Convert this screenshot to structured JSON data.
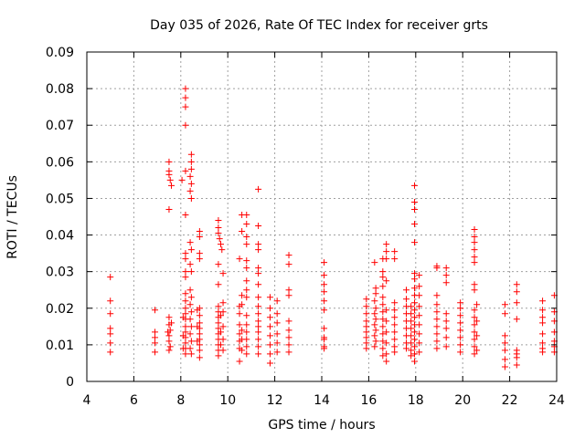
{
  "chart_data": {
    "type": "scatter",
    "title": "Day 035 of 2026, Rate Of TEC Index for receiver grts",
    "xlabel": "GPS time / hours",
    "ylabel": "ROTI / TECUs",
    "xlim": [
      4,
      24
    ],
    "ylim": [
      0,
      0.09
    ],
    "x_ticks": [
      4,
      6,
      8,
      10,
      12,
      14,
      16,
      18,
      20,
      22,
      24
    ],
    "x_tick_labels": [
      "4",
      "6",
      "8",
      "10",
      "12",
      "14",
      "16",
      "18",
      "20",
      "22",
      "24"
    ],
    "y_ticks": [
      0,
      0.01,
      0.02,
      0.03,
      0.04,
      0.05,
      0.06,
      0.07,
      0.08,
      0.09
    ],
    "y_tick_labels": [
      "0",
      "0.01",
      "0.02",
      "0.03",
      "0.04",
      "0.05",
      "0.06",
      "0.07",
      "0.08",
      "0.09"
    ],
    "grid": true,
    "marker": "plus",
    "color": "#ff0000",
    "points": [
      [
        5.0,
        0.0285
      ],
      [
        5.0,
        0.022
      ],
      [
        5.0,
        0.0185
      ],
      [
        5.0,
        0.0145
      ],
      [
        5.0,
        0.013
      ],
      [
        5.0,
        0.0105
      ],
      [
        5.0,
        0.008
      ],
      [
        6.9,
        0.0195
      ],
      [
        6.9,
        0.0135
      ],
      [
        6.9,
        0.012
      ],
      [
        6.9,
        0.0105
      ],
      [
        6.9,
        0.008
      ],
      [
        7.5,
        0.06
      ],
      [
        7.5,
        0.0575
      ],
      [
        7.5,
        0.0565
      ],
      [
        7.55,
        0.055
      ],
      [
        7.6,
        0.0535
      ],
      [
        7.5,
        0.047
      ],
      [
        7.5,
        0.0175
      ],
      [
        7.5,
        0.0155
      ],
      [
        7.55,
        0.014
      ],
      [
        7.5,
        0.0125
      ],
      [
        7.5,
        0.011
      ],
      [
        7.55,
        0.0095
      ],
      [
        7.5,
        0.0085
      ],
      [
        7.6,
        0.016
      ],
      [
        7.45,
        0.0135
      ],
      [
        8.2,
        0.08
      ],
      [
        8.2,
        0.0775
      ],
      [
        8.2,
        0.075
      ],
      [
        8.2,
        0.07
      ],
      [
        8.2,
        0.0575
      ],
      [
        8.2,
        0.0455
      ],
      [
        8.2,
        0.035
      ],
      [
        8.2,
        0.0335
      ],
      [
        8.2,
        0.03
      ],
      [
        8.2,
        0.0285
      ],
      [
        8.2,
        0.024
      ],
      [
        8.2,
        0.022
      ],
      [
        8.2,
        0.02
      ],
      [
        8.2,
        0.0185
      ],
      [
        8.2,
        0.017
      ],
      [
        8.2,
        0.015
      ],
      [
        8.2,
        0.0135
      ],
      [
        8.2,
        0.012
      ],
      [
        8.2,
        0.0105
      ],
      [
        8.2,
        0.009
      ],
      [
        8.2,
        0.0075
      ],
      [
        8.05,
        0.055
      ],
      [
        8.1,
        0.0175
      ],
      [
        8.1,
        0.0125
      ],
      [
        8.1,
        0.009
      ],
      [
        8.45,
        0.062
      ],
      [
        8.45,
        0.06
      ],
      [
        8.45,
        0.058
      ],
      [
        8.4,
        0.056
      ],
      [
        8.45,
        0.054
      ],
      [
        8.4,
        0.052
      ],
      [
        8.45,
        0.05
      ],
      [
        8.4,
        0.038
      ],
      [
        8.45,
        0.036
      ],
      [
        8.4,
        0.032
      ],
      [
        8.45,
        0.03
      ],
      [
        8.4,
        0.025
      ],
      [
        8.45,
        0.023
      ],
      [
        8.4,
        0.021
      ],
      [
        8.45,
        0.019
      ],
      [
        8.4,
        0.017
      ],
      [
        8.45,
        0.015
      ],
      [
        8.4,
        0.013
      ],
      [
        8.45,
        0.011
      ],
      [
        8.4,
        0.009
      ],
      [
        8.45,
        0.0075
      ],
      [
        8.8,
        0.041
      ],
      [
        8.8,
        0.0395
      ],
      [
        8.8,
        0.035
      ],
      [
        8.8,
        0.0335
      ],
      [
        8.8,
        0.02
      ],
      [
        8.8,
        0.018
      ],
      [
        8.8,
        0.016
      ],
      [
        8.8,
        0.0145
      ],
      [
        8.8,
        0.013
      ],
      [
        8.8,
        0.0115
      ],
      [
        8.8,
        0.01
      ],
      [
        8.8,
        0.0085
      ],
      [
        8.8,
        0.0065
      ],
      [
        8.7,
        0.0195
      ],
      [
        8.7,
        0.015
      ],
      [
        8.7,
        0.011
      ],
      [
        9.6,
        0.044
      ],
      [
        9.6,
        0.042
      ],
      [
        9.6,
        0.0405
      ],
      [
        9.65,
        0.039
      ],
      [
        9.7,
        0.0375
      ],
      [
        9.75,
        0.036
      ],
      [
        9.6,
        0.032
      ],
      [
        9.6,
        0.0265
      ],
      [
        9.6,
        0.0205
      ],
      [
        9.6,
        0.019
      ],
      [
        9.6,
        0.0175
      ],
      [
        9.6,
        0.016
      ],
      [
        9.6,
        0.0145
      ],
      [
        9.6,
        0.013
      ],
      [
        9.6,
        0.0115
      ],
      [
        9.6,
        0.01
      ],
      [
        9.6,
        0.0085
      ],
      [
        9.6,
        0.007
      ],
      [
        9.7,
        0.018
      ],
      [
        9.7,
        0.0135
      ],
      [
        9.7,
        0.01
      ],
      [
        9.8,
        0.0295
      ],
      [
        9.8,
        0.0215
      ],
      [
        9.8,
        0.019
      ],
      [
        9.8,
        0.015
      ],
      [
        9.8,
        0.0115
      ],
      [
        9.8,
        0.0085
      ],
      [
        10.5,
        0.0335
      ],
      [
        10.5,
        0.0205
      ],
      [
        10.5,
        0.0185
      ],
      [
        10.5,
        0.0155
      ],
      [
        10.5,
        0.013
      ],
      [
        10.5,
        0.011
      ],
      [
        10.5,
        0.009
      ],
      [
        10.5,
        0.0055
      ],
      [
        10.6,
        0.0455
      ],
      [
        10.6,
        0.041
      ],
      [
        10.6,
        0.0235
      ],
      [
        10.6,
        0.021
      ],
      [
        10.6,
        0.014
      ],
      [
        10.6,
        0.0115
      ],
      [
        10.6,
        0.0085
      ],
      [
        10.8,
        0.0455
      ],
      [
        10.8,
        0.043
      ],
      [
        10.8,
        0.0395
      ],
      [
        10.8,
        0.0375
      ],
      [
        10.8,
        0.033
      ],
      [
        10.8,
        0.031
      ],
      [
        10.8,
        0.0275
      ],
      [
        10.8,
        0.025
      ],
      [
        10.8,
        0.023
      ],
      [
        10.8,
        0.018
      ],
      [
        10.8,
        0.0155
      ],
      [
        10.8,
        0.0135
      ],
      [
        10.8,
        0.0115
      ],
      [
        10.8,
        0.0095
      ],
      [
        10.8,
        0.0075
      ],
      [
        11.3,
        0.0525
      ],
      [
        11.3,
        0.0425
      ],
      [
        11.3,
        0.0375
      ],
      [
        11.3,
        0.036
      ],
      [
        11.3,
        0.031
      ],
      [
        11.3,
        0.0295
      ],
      [
        11.3,
        0.0265
      ],
      [
        11.3,
        0.023
      ],
      [
        11.3,
        0.0205
      ],
      [
        11.3,
        0.0185
      ],
      [
        11.3,
        0.0165
      ],
      [
        11.3,
        0.015
      ],
      [
        11.3,
        0.0135
      ],
      [
        11.3,
        0.0115
      ],
      [
        11.3,
        0.0095
      ],
      [
        11.3,
        0.0075
      ],
      [
        11.8,
        0.023
      ],
      [
        11.8,
        0.02
      ],
      [
        11.8,
        0.0175
      ],
      [
        11.8,
        0.015
      ],
      [
        11.8,
        0.0125
      ],
      [
        11.8,
        0.01
      ],
      [
        11.8,
        0.0075
      ],
      [
        11.8,
        0.005
      ],
      [
        12.1,
        0.022
      ],
      [
        12.1,
        0.0185
      ],
      [
        12.1,
        0.016
      ],
      [
        12.1,
        0.013
      ],
      [
        12.1,
        0.0105
      ],
      [
        12.1,
        0.008
      ],
      [
        12.6,
        0.0345
      ],
      [
        12.6,
        0.032
      ],
      [
        12.6,
        0.025
      ],
      [
        12.6,
        0.0235
      ],
      [
        12.6,
        0.0165
      ],
      [
        12.6,
        0.014
      ],
      [
        12.6,
        0.012
      ],
      [
        12.6,
        0.01
      ],
      [
        12.6,
        0.008
      ],
      [
        14.1,
        0.0325
      ],
      [
        14.1,
        0.029
      ],
      [
        14.1,
        0.0265
      ],
      [
        14.1,
        0.0245
      ],
      [
        14.1,
        0.022
      ],
      [
        14.1,
        0.0195
      ],
      [
        14.1,
        0.0145
      ],
      [
        14.1,
        0.012
      ],
      [
        14.1,
        0.0115
      ],
      [
        14.1,
        0.0095
      ],
      [
        14.1,
        0.009
      ],
      [
        15.9,
        0.0225
      ],
      [
        15.9,
        0.0205
      ],
      [
        15.9,
        0.0185
      ],
      [
        15.9,
        0.0165
      ],
      [
        15.9,
        0.015
      ],
      [
        15.9,
        0.0135
      ],
      [
        15.9,
        0.012
      ],
      [
        15.9,
        0.0105
      ],
      [
        15.9,
        0.009
      ],
      [
        16.25,
        0.0325
      ],
      [
        16.3,
        0.0255
      ],
      [
        16.3,
        0.024
      ],
      [
        16.25,
        0.022
      ],
      [
        16.3,
        0.02
      ],
      [
        16.25,
        0.0185
      ],
      [
        16.3,
        0.017
      ],
      [
        16.25,
        0.0155
      ],
      [
        16.3,
        0.014
      ],
      [
        16.25,
        0.0125
      ],
      [
        16.3,
        0.011
      ],
      [
        16.25,
        0.0095
      ],
      [
        16.6,
        0.0335
      ],
      [
        16.6,
        0.03
      ],
      [
        16.6,
        0.0285
      ],
      [
        16.6,
        0.026
      ],
      [
        16.6,
        0.023
      ],
      [
        16.6,
        0.021
      ],
      [
        16.6,
        0.019
      ],
      [
        16.6,
        0.017
      ],
      [
        16.6,
        0.015
      ],
      [
        16.6,
        0.013
      ],
      [
        16.6,
        0.011
      ],
      [
        16.6,
        0.009
      ],
      [
        16.6,
        0.007
      ],
      [
        16.75,
        0.0375
      ],
      [
        16.75,
        0.0355
      ],
      [
        16.75,
        0.0335
      ],
      [
        16.75,
        0.0275
      ],
      [
        16.75,
        0.0195
      ],
      [
        16.75,
        0.0165
      ],
      [
        16.75,
        0.0135
      ],
      [
        16.75,
        0.0105
      ],
      [
        16.75,
        0.0075
      ],
      [
        16.75,
        0.0055
      ],
      [
        17.1,
        0.0355
      ],
      [
        17.1,
        0.0335
      ],
      [
        17.1,
        0.0215
      ],
      [
        17.1,
        0.0195
      ],
      [
        17.1,
        0.0175
      ],
      [
        17.1,
        0.0155
      ],
      [
        17.1,
        0.0135
      ],
      [
        17.1,
        0.0115
      ],
      [
        17.1,
        0.0095
      ],
      [
        17.1,
        0.008
      ],
      [
        17.6,
        0.025
      ],
      [
        17.6,
        0.0225
      ],
      [
        17.6,
        0.0205
      ],
      [
        17.6,
        0.0185
      ],
      [
        17.6,
        0.0165
      ],
      [
        17.6,
        0.0145
      ],
      [
        17.6,
        0.0125
      ],
      [
        17.6,
        0.0105
      ],
      [
        17.6,
        0.009
      ],
      [
        17.8,
        0.0205
      ],
      [
        17.8,
        0.0185
      ],
      [
        17.8,
        0.0165
      ],
      [
        17.8,
        0.0145
      ],
      [
        17.8,
        0.0125
      ],
      [
        17.8,
        0.0105
      ],
      [
        17.8,
        0.0085
      ],
      [
        17.8,
        0.007
      ],
      [
        17.95,
        0.0535
      ],
      [
        17.95,
        0.049
      ],
      [
        17.95,
        0.047
      ],
      [
        17.95,
        0.043
      ],
      [
        17.95,
        0.038
      ],
      [
        17.95,
        0.0295
      ],
      [
        17.95,
        0.028
      ],
      [
        17.95,
        0.0255
      ],
      [
        17.95,
        0.0235
      ],
      [
        17.95,
        0.0215
      ],
      [
        17.95,
        0.0195
      ],
      [
        17.95,
        0.0175
      ],
      [
        17.95,
        0.0155
      ],
      [
        17.95,
        0.0135
      ],
      [
        17.95,
        0.0115
      ],
      [
        17.95,
        0.0095
      ],
      [
        17.95,
        0.0075
      ],
      [
        17.95,
        0.0055
      ],
      [
        18.15,
        0.029
      ],
      [
        18.15,
        0.026
      ],
      [
        18.15,
        0.0235
      ],
      [
        18.15,
        0.0205
      ],
      [
        18.15,
        0.018
      ],
      [
        18.15,
        0.0155
      ],
      [
        18.15,
        0.013
      ],
      [
        18.15,
        0.0105
      ],
      [
        18.15,
        0.008
      ],
      [
        18.9,
        0.0315
      ],
      [
        18.9,
        0.031
      ],
      [
        18.9,
        0.0235
      ],
      [
        18.9,
        0.021
      ],
      [
        18.9,
        0.019
      ],
      [
        18.9,
        0.017
      ],
      [
        18.9,
        0.015
      ],
      [
        18.9,
        0.013
      ],
      [
        18.9,
        0.011
      ],
      [
        18.9,
        0.009
      ],
      [
        19.3,
        0.031
      ],
      [
        19.3,
        0.029
      ],
      [
        19.3,
        0.027
      ],
      [
        19.3,
        0.0185
      ],
      [
        19.3,
        0.0165
      ],
      [
        19.3,
        0.0145
      ],
      [
        19.3,
        0.012
      ],
      [
        19.3,
        0.0095
      ],
      [
        19.9,
        0.0215
      ],
      [
        19.9,
        0.02
      ],
      [
        19.9,
        0.018
      ],
      [
        19.9,
        0.016
      ],
      [
        19.9,
        0.014
      ],
      [
        19.9,
        0.012
      ],
      [
        19.9,
        0.01
      ],
      [
        19.9,
        0.008
      ],
      [
        20.5,
        0.0415
      ],
      [
        20.5,
        0.0395
      ],
      [
        20.5,
        0.038
      ],
      [
        20.5,
        0.036
      ],
      [
        20.5,
        0.034
      ],
      [
        20.5,
        0.0325
      ],
      [
        20.5,
        0.0265
      ],
      [
        20.5,
        0.025
      ],
      [
        20.5,
        0.0195
      ],
      [
        20.5,
        0.0175
      ],
      [
        20.5,
        0.0155
      ],
      [
        20.5,
        0.0135
      ],
      [
        20.5,
        0.0115
      ],
      [
        20.5,
        0.0095
      ],
      [
        20.5,
        0.0075
      ],
      [
        20.6,
        0.021
      ],
      [
        20.6,
        0.0165
      ],
      [
        20.6,
        0.0125
      ],
      [
        20.6,
        0.0085
      ],
      [
        21.8,
        0.021
      ],
      [
        21.8,
        0.0185
      ],
      [
        21.8,
        0.0125
      ],
      [
        21.8,
        0.0105
      ],
      [
        21.8,
        0.0085
      ],
      [
        21.8,
        0.006
      ],
      [
        21.8,
        0.004
      ],
      [
        22.3,
        0.0265
      ],
      [
        22.3,
        0.0245
      ],
      [
        22.3,
        0.0215
      ],
      [
        22.3,
        0.017
      ],
      [
        22.3,
        0.0085
      ],
      [
        22.3,
        0.0075
      ],
      [
        22.3,
        0.0065
      ],
      [
        22.3,
        0.0045
      ],
      [
        23.4,
        0.022
      ],
      [
        23.4,
        0.0195
      ],
      [
        23.4,
        0.0175
      ],
      [
        23.4,
        0.016
      ],
      [
        23.4,
        0.013
      ],
      [
        23.4,
        0.0105
      ],
      [
        23.4,
        0.009
      ],
      [
        23.4,
        0.008
      ],
      [
        23.9,
        0.0235
      ],
      [
        23.9,
        0.019
      ],
      [
        23.9,
        0.0165
      ],
      [
        23.9,
        0.0135
      ],
      [
        23.9,
        0.011
      ],
      [
        23.9,
        0.0095
      ],
      [
        23.9,
        0.008
      ]
    ]
  }
}
